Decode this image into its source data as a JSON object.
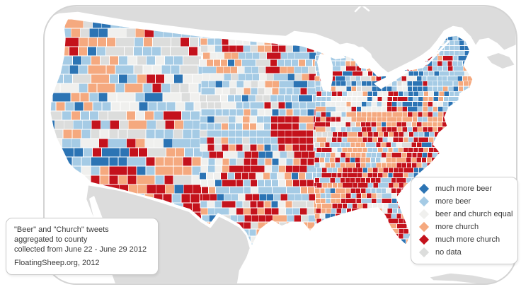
{
  "annotation": {
    "line1": "\"Beer\" and \"Church\" tweets",
    "line2": "aggregated to county",
    "line3": "collected from June 22 - June 29 2012",
    "source": "FloatingSheep.org, 2012"
  },
  "legend": {
    "items": [
      {
        "key": "much_more_beer",
        "label": "much more beer",
        "color": "#2c74b4"
      },
      {
        "key": "more_beer",
        "label": "more beer",
        "color": "#a5cbe5"
      },
      {
        "key": "equal",
        "label": "beer and church equal",
        "color": "#f0f0ee"
      },
      {
        "key": "more_church",
        "label": "more church",
        "color": "#f5a97f"
      },
      {
        "key": "much_more_church",
        "label": "much more church",
        "color": "#c4121c"
      },
      {
        "key": "no_data",
        "label": "no data",
        "color": "#dcdddc"
      }
    ]
  },
  "map": {
    "type": "choropleth",
    "geography": "United States counties (continental US), neighbors Canada / Mexico / Cuba in gray",
    "ocean_color": "#ffffff",
    "neighbor_land_color": "#dcdcdc",
    "county_border_color": "#ffffff",
    "frame_border_color": "#d3d3d3",
    "classes": [
      "much_more_beer",
      "more_beer",
      "equal",
      "more_church",
      "much_more_church",
      "no_data"
    ],
    "regions": [
      {
        "name": "pacific-coast",
        "u": [
          0,
          0.09
        ],
        "v": [
          0,
          1
        ],
        "weights": {
          "much_more_beer": 0.2,
          "more_beer": 0.42,
          "equal": 0.1,
          "more_church": 0.12,
          "much_more_church": 0.1,
          "no_data": 0.06
        }
      },
      {
        "name": "southwest",
        "u": [
          0.09,
          0.34
        ],
        "v": [
          0.55,
          1
        ],
        "weights": {
          "much_more_beer": 0.06,
          "more_beer": 0.28,
          "equal": 0.12,
          "more_church": 0.22,
          "much_more_church": 0.22,
          "no_data": 0.1
        }
      },
      {
        "name": "west-interior",
        "u": [
          0.09,
          0.34
        ],
        "v": [
          0,
          0.55
        ],
        "weights": {
          "much_more_beer": 0.1,
          "more_beer": 0.36,
          "equal": 0.22,
          "more_church": 0.12,
          "much_more_church": 0.06,
          "no_data": 0.14
        }
      },
      {
        "name": "northern-plains",
        "u": [
          0.34,
          0.52
        ],
        "v": [
          0,
          0.55
        ],
        "weights": {
          "much_more_beer": 0.07,
          "more_beer": 0.36,
          "equal": 0.3,
          "more_church": 0.12,
          "much_more_church": 0.07,
          "no_data": 0.08
        }
      },
      {
        "name": "texas-south-plains",
        "u": [
          0.34,
          0.56
        ],
        "v": [
          0.55,
          1
        ],
        "weights": {
          "much_more_beer": 0.07,
          "more_beer": 0.25,
          "equal": 0.12,
          "more_church": 0.27,
          "much_more_church": 0.24,
          "no_data": 0.05
        }
      },
      {
        "name": "midwest-great-lakes",
        "u": [
          0.52,
          0.79
        ],
        "v": [
          0,
          0.42
        ],
        "weights": {
          "much_more_beer": 0.17,
          "more_beer": 0.33,
          "equal": 0.1,
          "more_church": 0.19,
          "much_more_church": 0.17,
          "no_data": 0.04
        }
      },
      {
        "name": "south",
        "u": [
          0.52,
          0.86
        ],
        "v": [
          0.42,
          1
        ],
        "weights": {
          "much_more_beer": 0.05,
          "more_beer": 0.19,
          "equal": 0.06,
          "more_church": 0.29,
          "much_more_church": 0.39,
          "no_data": 0.02
        }
      },
      {
        "name": "northeast",
        "u": [
          0.79,
          1
        ],
        "v": [
          0,
          0.42
        ],
        "weights": {
          "much_more_beer": 0.28,
          "more_beer": 0.36,
          "equal": 0.07,
          "more_church": 0.14,
          "much_more_church": 0.13,
          "no_data": 0.02
        }
      },
      {
        "name": "southeast-atlantic-florida",
        "u": [
          0.86,
          1
        ],
        "v": [
          0.42,
          1
        ],
        "weights": {
          "much_more_beer": 0.08,
          "more_beer": 0.23,
          "equal": 0.05,
          "more_church": 0.27,
          "much_more_church": 0.35,
          "no_data": 0.02
        }
      },
      {
        "name": "default",
        "u": [
          0,
          1
        ],
        "v": [
          0,
          1
        ],
        "weights": {
          "much_more_beer": 0.1,
          "more_beer": 0.3,
          "equal": 0.15,
          "more_church": 0.2,
          "much_more_church": 0.18,
          "no_data": 0.07
        }
      }
    ]
  }
}
